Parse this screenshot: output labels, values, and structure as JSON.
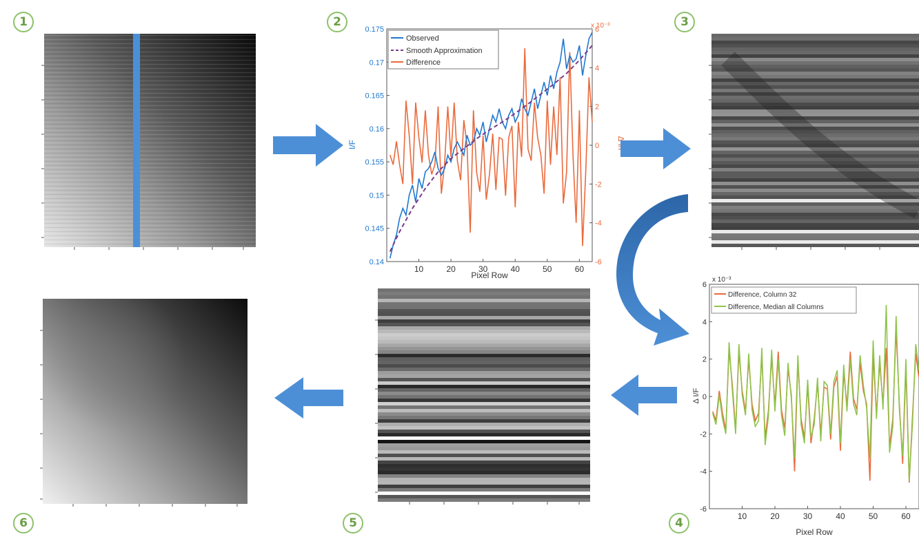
{
  "steps": [
    "1",
    "2",
    "3",
    "4",
    "5",
    "6"
  ],
  "chart_data": [
    {
      "type": "line",
      "panel": "2",
      "xlabel": "Pixel Row",
      "ylabel_left": "I/F",
      "ylabel_right": "Δ I/F",
      "right_axis_exponent": "x 10⁻³",
      "xlim": [
        0,
        64
      ],
      "ylim_left": [
        0.14,
        0.175
      ],
      "ylim_right": [
        -6,
        6
      ],
      "xticks": [
        10,
        20,
        30,
        40,
        50,
        60
      ],
      "yticks_left": [
        "0.14",
        "0.145",
        "0.15",
        "0.155",
        "0.16",
        "0.165",
        "0.17",
        "0.175"
      ],
      "yticks_right": [
        "-6",
        "-4",
        "-2",
        "0",
        "2",
        "4",
        "6"
      ],
      "legend_position": "top-left",
      "colors": {
        "observed": "#1f77d0",
        "smooth": "#7a3a8a",
        "difference": "#ea6a3c",
        "left_axis": "#1f77d0",
        "right_axis": "#ea6a3c"
      },
      "series": [
        {
          "name": "Observed",
          "axis": "left",
          "style": "solid",
          "x": [
            1,
            2,
            3,
            4,
            5,
            6,
            7,
            8,
            9,
            10,
            11,
            12,
            13,
            14,
            15,
            16,
            17,
            18,
            19,
            20,
            21,
            22,
            23,
            24,
            25,
            26,
            27,
            28,
            29,
            30,
            31,
            32,
            33,
            34,
            35,
            36,
            37,
            38,
            39,
            40,
            41,
            42,
            43,
            44,
            45,
            46,
            47,
            48,
            49,
            50,
            51,
            52,
            53,
            54,
            55,
            56,
            57,
            58,
            59,
            60,
            61,
            62,
            63,
            64
          ],
          "values": [
            0.1405,
            0.1425,
            0.144,
            0.1465,
            0.148,
            0.147,
            0.15,
            0.1515,
            0.149,
            0.1525,
            0.151,
            0.1535,
            0.154,
            0.155,
            0.1565,
            0.154,
            0.153,
            0.154,
            0.156,
            0.155,
            0.157,
            0.158,
            0.157,
            0.156,
            0.159,
            0.1575,
            0.158,
            0.16,
            0.159,
            0.161,
            0.158,
            0.16,
            0.162,
            0.161,
            0.163,
            0.161,
            0.16,
            0.162,
            0.163,
            0.161,
            0.162,
            0.1645,
            0.163,
            0.162,
            0.164,
            0.166,
            0.163,
            0.165,
            0.167,
            0.165,
            0.168,
            0.166,
            0.1685,
            0.17,
            0.1735,
            0.169,
            0.171,
            0.17,
            0.1705,
            0.1725,
            0.168,
            0.171,
            0.1735,
            0.1745
          ]
        },
        {
          "name": "Smooth Approximation",
          "axis": "left",
          "style": "dashed",
          "x": [
            1,
            4,
            8,
            12,
            16,
            20,
            24,
            28,
            32,
            36,
            40,
            44,
            48,
            52,
            56,
            60,
            64
          ],
          "values": [
            0.1415,
            0.1445,
            0.148,
            0.151,
            0.1535,
            0.1555,
            0.157,
            0.1585,
            0.1598,
            0.161,
            0.1623,
            0.1637,
            0.1652,
            0.1667,
            0.1683,
            0.1703,
            0.1725
          ]
        },
        {
          "name": "Difference",
          "axis": "right",
          "style": "solid",
          "x": [
            1,
            2,
            3,
            4,
            5,
            6,
            7,
            8,
            9,
            10,
            11,
            12,
            13,
            14,
            15,
            16,
            17,
            18,
            19,
            20,
            21,
            22,
            23,
            24,
            25,
            26,
            27,
            28,
            29,
            30,
            31,
            32,
            33,
            34,
            35,
            36,
            37,
            38,
            39,
            40,
            41,
            42,
            43,
            44,
            45,
            46,
            47,
            48,
            49,
            50,
            51,
            52,
            53,
            54,
            55,
            56,
            57,
            58,
            59,
            60,
            61,
            62,
            63,
            64
          ],
          "values": [
            -0.5,
            -1.0,
            0.2,
            -1.0,
            -2.0,
            2.3,
            0.5,
            -2.0,
            2.2,
            0.4,
            -0.9,
            1.8,
            -0.5,
            -1.5,
            -1.0,
            2.0,
            -2.5,
            -1.0,
            2.0,
            -0.6,
            2.2,
            -0.8,
            -1.8,
            1.3,
            0.0,
            -4.5,
            1.8,
            -1.4,
            -2.4,
            0.5,
            -2.8,
            -1.5,
            0.6,
            -2.3,
            0.4,
            0.3,
            -2.6,
            0.4,
            1.0,
            -3.2,
            1.2,
            -0.6,
            5.0,
            -0.2,
            -0.8,
            2.2,
            0.4,
            -0.5,
            -2.5,
            2.3,
            -1.0,
            2.0,
            -0.5,
            3.5,
            -3.0,
            -1.4,
            4.8,
            -0.5,
            -4.0,
            1.8,
            -5.2,
            -1.3,
            3.5,
            1.2
          ]
        }
      ]
    },
    {
      "type": "line",
      "panel": "4",
      "xlabel": "Pixel Row",
      "ylabel": "Δ I/F",
      "y_exponent": "x 10⁻³",
      "xlim": [
        0,
        64
      ],
      "ylim": [
        -6,
        6
      ],
      "xticks": [
        "10",
        "20",
        "30",
        "40",
        "50",
        "60"
      ],
      "yticks": [
        "-6",
        "-4",
        "-2",
        "0",
        "2",
        "4",
        "6"
      ],
      "legend_position": "top-left",
      "colors": {
        "column32": "#ea6a3c",
        "median": "#8fc44c"
      },
      "series": [
        {
          "name": "Difference, Column 32",
          "x": [
            1,
            2,
            3,
            4,
            5,
            6,
            7,
            8,
            9,
            10,
            11,
            12,
            13,
            14,
            15,
            16,
            17,
            18,
            19,
            20,
            21,
            22,
            23,
            24,
            25,
            26,
            27,
            28,
            29,
            30,
            31,
            32,
            33,
            34,
            35,
            36,
            37,
            38,
            39,
            40,
            41,
            42,
            43,
            44,
            45,
            46,
            47,
            48,
            49,
            50,
            51,
            52,
            53,
            54,
            55,
            56,
            57,
            58,
            59,
            60,
            61,
            62,
            63,
            64
          ],
          "values": [
            -0.8,
            -1.3,
            0.3,
            -0.9,
            -1.8,
            2.5,
            0.6,
            -1.8,
            2.4,
            0.3,
            -0.8,
            2.0,
            -0.4,
            -1.3,
            -0.9,
            2.2,
            -2.2,
            -0.8,
            2.1,
            -0.5,
            2.4,
            -0.7,
            -1.7,
            1.5,
            0.1,
            -4.0,
            1.9,
            -1.2,
            -2.2,
            0.6,
            -2.5,
            -1.2,
            0.7,
            -2.0,
            0.5,
            0.4,
            -2.3,
            0.5,
            1.1,
            -2.9,
            1.3,
            -0.5,
            2.4,
            -0.1,
            -0.7,
            1.8,
            0.3,
            -0.4,
            -4.5,
            2.2,
            -0.9,
            1.8,
            -0.4,
            2.6,
            -2.7,
            -1.2,
            3.6,
            -0.4,
            -3.6,
            1.6,
            -4.6,
            -1.1,
            2.3,
            1.0
          ]
        },
        {
          "name": "Difference, Median all Columns",
          "x": [
            1,
            2,
            3,
            4,
            5,
            6,
            7,
            8,
            9,
            10,
            11,
            12,
            13,
            14,
            15,
            16,
            17,
            18,
            19,
            20,
            21,
            22,
            23,
            24,
            25,
            26,
            27,
            28,
            29,
            30,
            31,
            32,
            33,
            34,
            35,
            36,
            37,
            38,
            39,
            40,
            41,
            42,
            43,
            44,
            45,
            46,
            47,
            48,
            49,
            50,
            51,
            52,
            53,
            54,
            55,
            56,
            57,
            58,
            59,
            60,
            61,
            62,
            63,
            64
          ],
          "values": [
            -0.9,
            -1.5,
            0.1,
            -1.2,
            -2.0,
            2.9,
            0.3,
            -2.0,
            2.8,
            0.1,
            -1.0,
            2.3,
            -0.7,
            -1.6,
            -1.3,
            2.6,
            -2.6,
            -1.1,
            2.5,
            -0.8,
            2.0,
            -1.0,
            -2.1,
            1.8,
            -0.1,
            -3.3,
            2.2,
            -1.5,
            -2.5,
            0.9,
            -2.2,
            -1.5,
            1.0,
            -2.4,
            0.8,
            0.6,
            -2.0,
            0.8,
            1.4,
            -2.5,
            1.7,
            -0.8,
            2.0,
            -0.4,
            -1.0,
            2.2,
            0.6,
            -0.6,
            -3.3,
            3.0,
            -1.2,
            2.2,
            -0.7,
            4.9,
            -3.0,
            -1.6,
            4.3,
            -0.7,
            -3.2,
            2.0,
            -4.5,
            -1.5,
            2.8,
            1.4
          ]
        }
      ]
    }
  ]
}
